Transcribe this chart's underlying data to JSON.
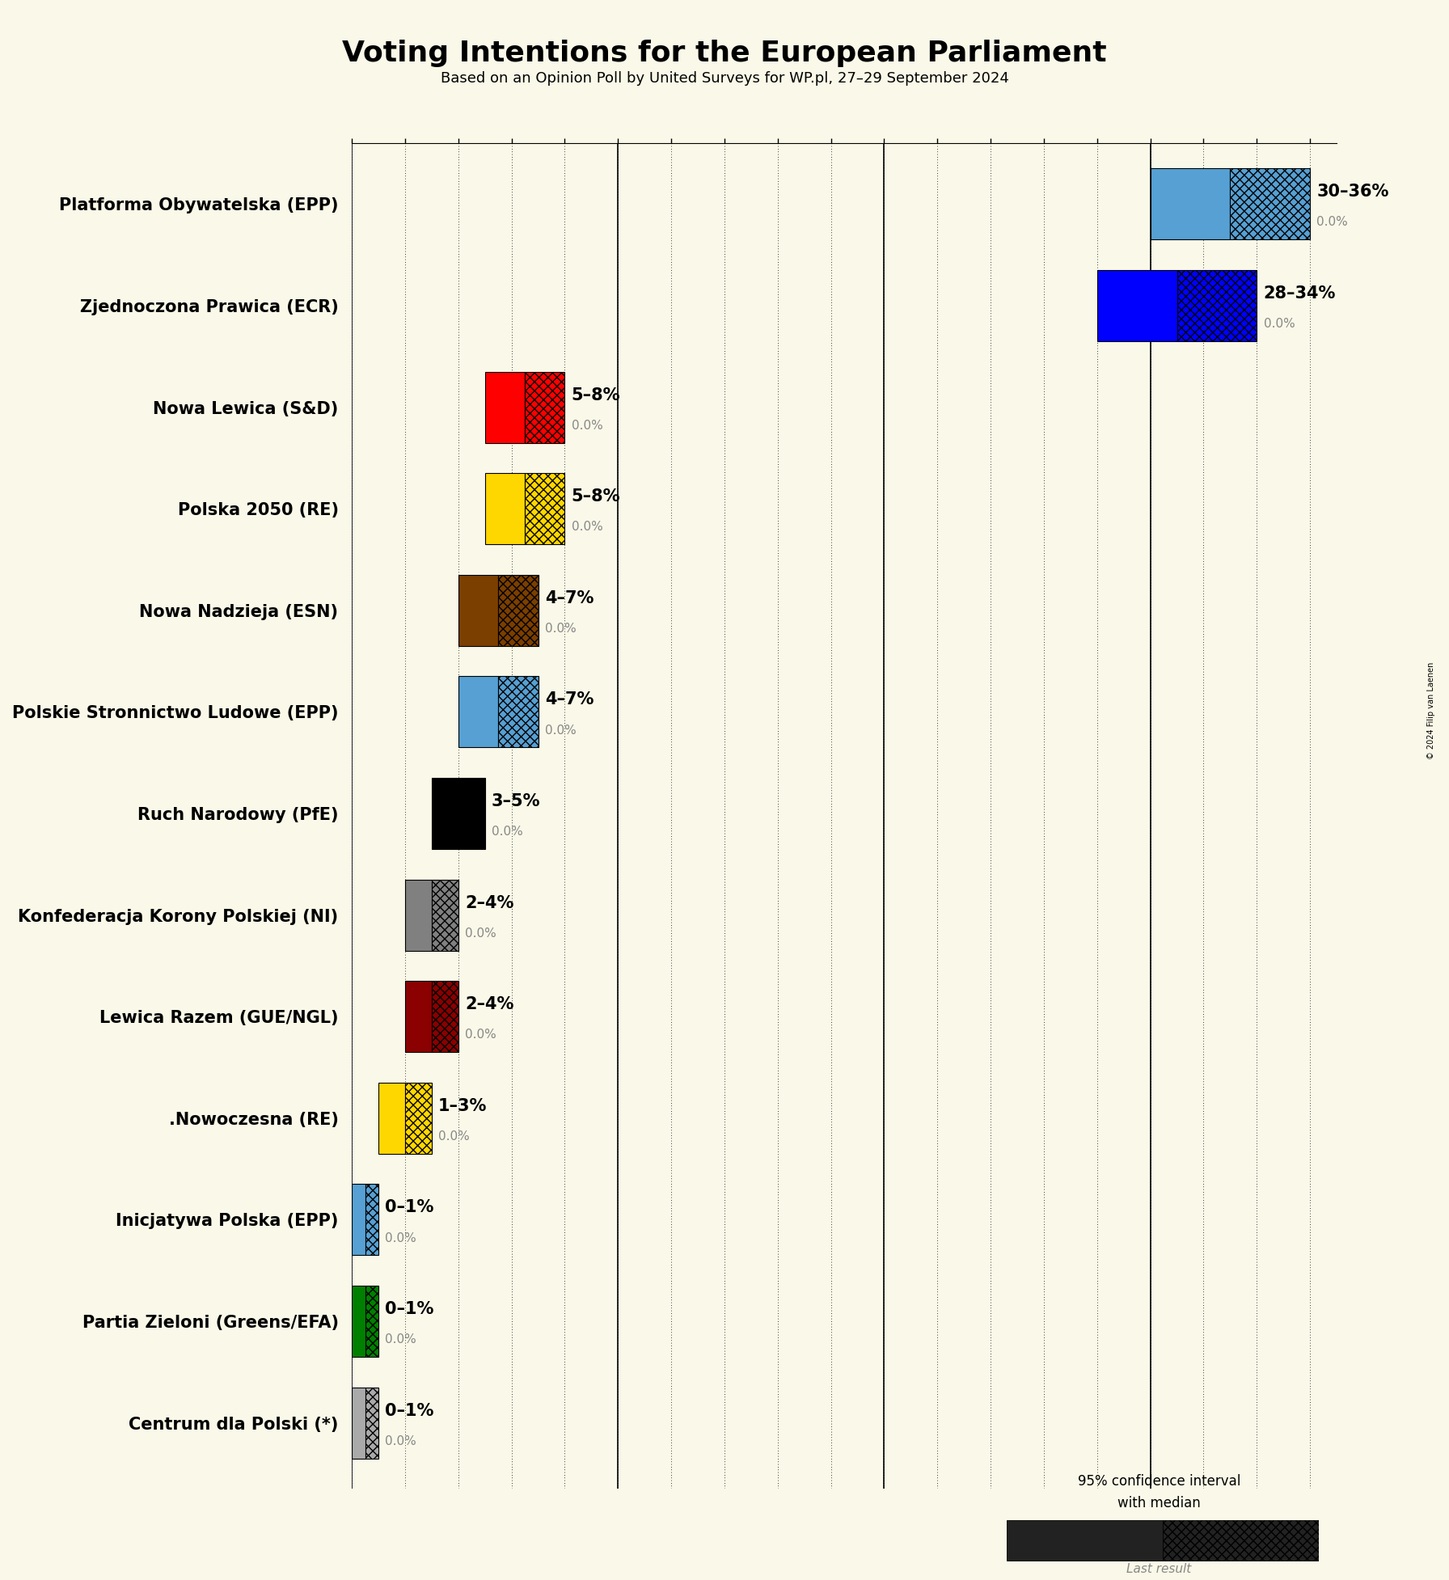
{
  "title": "Voting Intentions for the European Parliament",
  "subtitle": "Based on an Opinion Poll by United Surveys for WP.pl, 27–29 September 2024",
  "copyright": "© 2024 Filip van Laenen",
  "background_color": "#faf8e8",
  "parties": [
    {
      "name": "Platforma Obywatelska (EPP)",
      "median": 33,
      "low": 30,
      "high": 36,
      "last": 0.0,
      "color": "#56a0d3",
      "label": "30–36%"
    },
    {
      "name": "Zjednoczona Prawica (ECR)",
      "median": 31,
      "low": 28,
      "high": 34,
      "last": 0.0,
      "color": "#0000ff",
      "label": "28–34%"
    },
    {
      "name": "Nowa Lewica (S&D)",
      "median": 6.5,
      "low": 5,
      "high": 8,
      "last": 0.0,
      "color": "#ff0000",
      "label": "5–8%"
    },
    {
      "name": "Polska 2050 (RE)",
      "median": 6.5,
      "low": 5,
      "high": 8,
      "last": 0.0,
      "color": "#ffd700",
      "label": "5–8%"
    },
    {
      "name": "Nowa Nadzieja (ESN)",
      "median": 5.5,
      "low": 4,
      "high": 7,
      "last": 0.0,
      "color": "#7b3f00",
      "label": "4–7%"
    },
    {
      "name": "Polskie Stronnictwo Ludowe (EPP)",
      "median": 5.5,
      "low": 4,
      "high": 7,
      "last": 0.0,
      "color": "#56a0d3",
      "label": "4–7%"
    },
    {
      "name": "Ruch Narodowy (PfE)",
      "median": 4.0,
      "low": 3,
      "high": 5,
      "last": 0.0,
      "color": "#000000",
      "label": "3–5%"
    },
    {
      "name": "Konfederacja Korony Polskiej (NI)",
      "median": 3.0,
      "low": 2,
      "high": 4,
      "last": 0.0,
      "color": "#808080",
      "label": "2–4%"
    },
    {
      "name": "Lewica Razem (GUE/NGL)",
      "median": 3.0,
      "low": 2,
      "high": 4,
      "last": 0.0,
      "color": "#8b0000",
      "label": "2–4%"
    },
    {
      "name": ".Nowoczesna (RE)",
      "median": 2.0,
      "low": 1,
      "high": 3,
      "last": 0.0,
      "color": "#ffd700",
      "label": "1–3%"
    },
    {
      "name": "Inicjatywa Polska (EPP)",
      "median": 0.5,
      "low": 0,
      "high": 1,
      "last": 0.0,
      "color": "#56a0d3",
      "label": "0–1%"
    },
    {
      "name": "Partia Zieloni (Greens/EFA)",
      "median": 0.5,
      "low": 0,
      "high": 1,
      "last": 0.0,
      "color": "#008000",
      "label": "0–1%"
    },
    {
      "name": "Centrum dla Polski (*)",
      "median": 0.5,
      "low": 0,
      "high": 1,
      "last": 0.0,
      "color": "#aaaaaa",
      "label": "0–1%"
    }
  ],
  "xlim": [
    0,
    37
  ],
  "xtick_step": 2,
  "bar_height": 0.7,
  "label_fontsize": 15,
  "last_fontsize": 11,
  "ytick_fontsize": 15
}
